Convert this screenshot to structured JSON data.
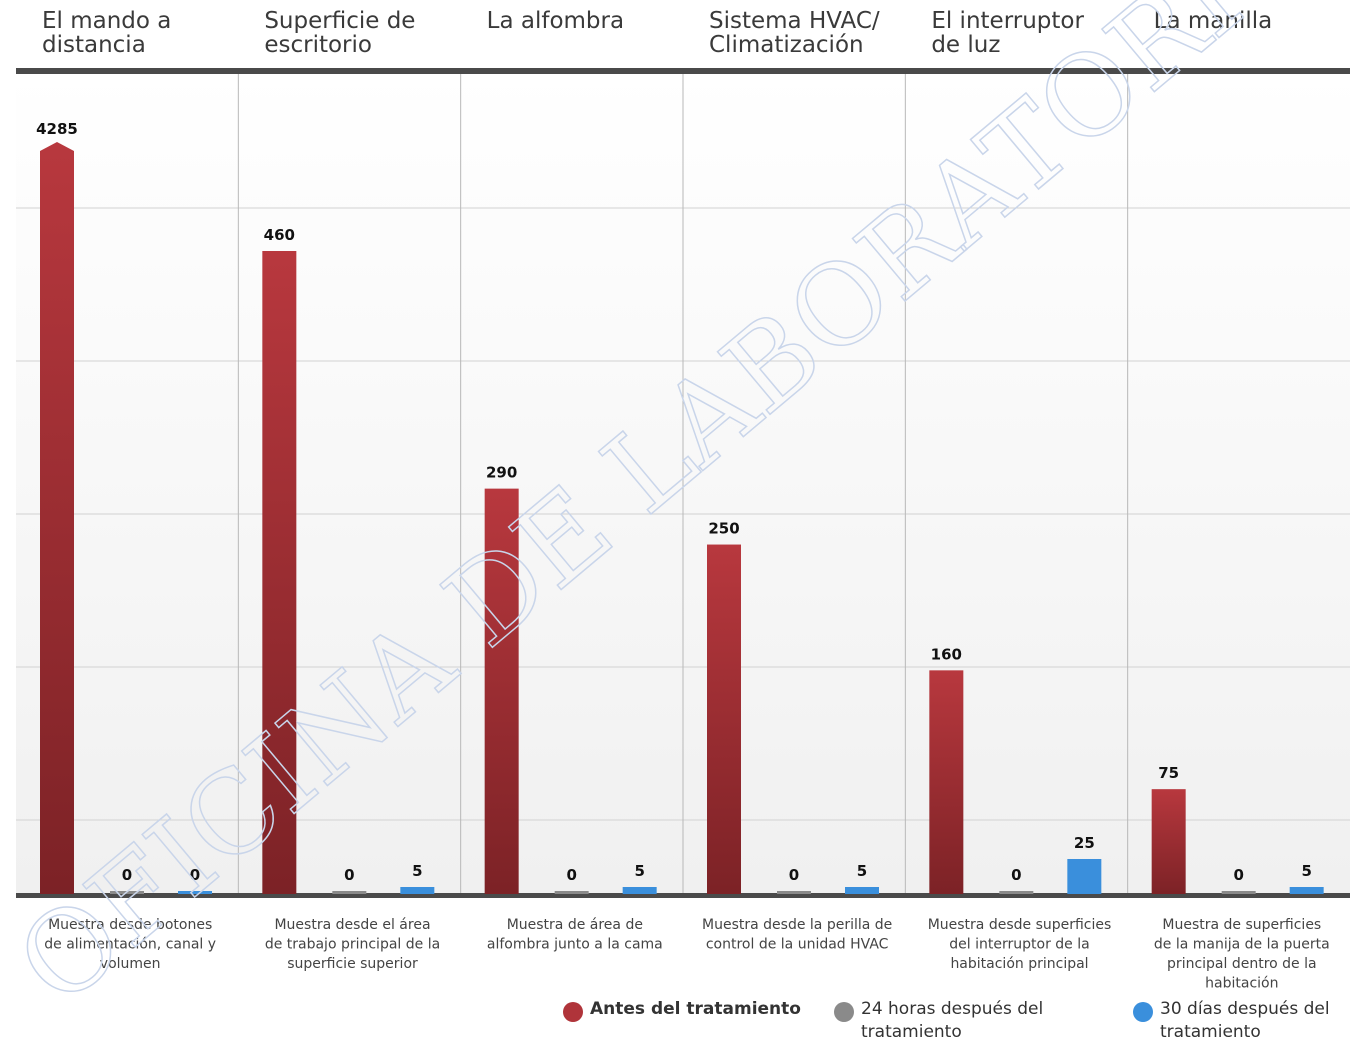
{
  "chart_data": {
    "type": "bar",
    "categories": [
      {
        "title": [
          "El mando a",
          "distancia"
        ],
        "description": [
          "Muestra desde botones",
          "de alimentación, canal y",
          "volumen"
        ]
      },
      {
        "title": [
          "Superficie de",
          "escritorio"
        ],
        "description": [
          "Muestra desde el área",
          "de trabajo principal de la",
          "superficie superior"
        ]
      },
      {
        "title": [
          "La alfombra"
        ],
        "description": [
          "Muestra de área de",
          "alfombra junto a la cama"
        ]
      },
      {
        "title": [
          "Sistema HVAC/",
          "Climatización"
        ],
        "description": [
          "Muestra desde la perilla de",
          "control de la unidad HVAC"
        ]
      },
      {
        "title": [
          "El interruptor",
          "de luz"
        ],
        "description": [
          "Muestra desde superficies",
          "del interruptor de la",
          "habitación principal"
        ]
      },
      {
        "title": [
          "La manilla"
        ],
        "description": [
          "Muestra de superficies",
          "de la manija de la puerta",
          "principal dentro de la",
          "habitación"
        ]
      }
    ],
    "series": [
      {
        "name": "Antes del tratamiento",
        "color": "#b0343a",
        "values": [
          4285,
          460,
          290,
          250,
          160,
          75
        ]
      },
      {
        "name": "24 horas después del tratamiento",
        "color": "#8a8a8a",
        "values": [
          0,
          0,
          0,
          0,
          0,
          0
        ]
      },
      {
        "name": "30 días después del tratamiento",
        "color": "#3a8fdc",
        "values": [
          0,
          5,
          5,
          5,
          25,
          5
        ]
      }
    ],
    "legend": [
      {
        "lines": [
          "Antes del tratamiento"
        ],
        "color": "#b0343a",
        "bold": true
      },
      {
        "lines": [
          "24 horas después del",
          "tratamiento"
        ],
        "color": "#8a8a8a",
        "bold": false
      },
      {
        "lines": [
          "30 días después del",
          "tratamiento"
        ],
        "color": "#3a8fdc",
        "bold": false
      }
    ],
    "legend_placement": "bottom-right",
    "grid": true,
    "watermark": "OFICINA DE LABORATORIO"
  }
}
